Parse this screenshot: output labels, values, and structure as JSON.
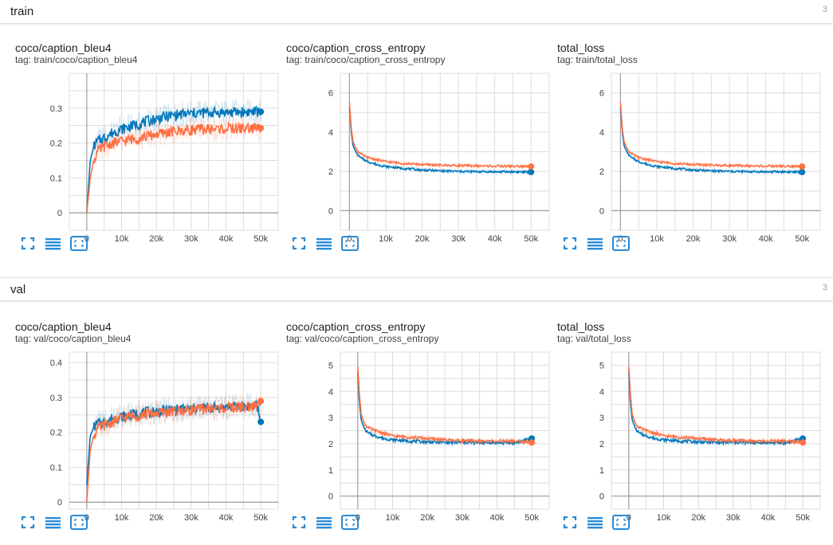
{
  "sections": [
    {
      "name": "train",
      "count": "3",
      "cards": [
        {
          "title": "coco/caption_bleu4",
          "tag": "tag: train/coco/caption_bleu4",
          "chart_data": {
            "type": "line",
            "x_ticks": [
              "0",
              "10k",
              "20k",
              "30k",
              "40k",
              "50k"
            ],
            "y_ticks": [
              "0",
              "0.1",
              "0.2",
              "0.3"
            ],
            "xlim": [
              -5000,
              55000
            ],
            "ylim": [
              -0.05,
              0.4
            ],
            "series": [
              {
                "color": "#0077bb",
                "x": [
                  0,
                  1000,
                  2000,
                  3000,
                  5000,
                  7500,
                  10000,
                  15000,
                  20000,
                  25000,
                  30000,
                  35000,
                  40000,
                  45000,
                  50000
                ],
                "y": [
                  0,
                  0.15,
                  0.19,
                  0.205,
                  0.215,
                  0.23,
                  0.24,
                  0.255,
                  0.27,
                  0.28,
                  0.285,
                  0.287,
                  0.288,
                  0.289,
                  0.29
                ]
              },
              {
                "color": "#ff7043",
                "x": [
                  0,
                  1000,
                  2000,
                  3000,
                  5000,
                  7500,
                  10000,
                  15000,
                  20000,
                  25000,
                  30000,
                  35000,
                  40000,
                  45000,
                  50000
                ],
                "y": [
                  0,
                  0.1,
                  0.15,
                  0.175,
                  0.19,
                  0.2,
                  0.205,
                  0.215,
                  0.225,
                  0.233,
                  0.238,
                  0.24,
                  0.241,
                  0.242,
                  0.243
                ]
              }
            ]
          }
        },
        {
          "title": "coco/caption_cross_entropy",
          "tag": "tag: train/coco/caption_cross_entropy",
          "chart_data": {
            "type": "line",
            "x_ticks": [
              "0",
              "10k",
              "20k",
              "30k",
              "40k",
              "50k"
            ],
            "y_ticks": [
              "0",
              "2",
              "4",
              "6"
            ],
            "xlim": [
              -2500,
              55000
            ],
            "ylim": [
              -1,
              7
            ],
            "series": [
              {
                "color": "#0077bb",
                "x": [
                  0,
                  500,
                  1000,
                  2000,
                  3000,
                  5000,
                  7500,
                  10000,
                  15000,
                  20000,
                  25000,
                  30000,
                  35000,
                  40000,
                  45000,
                  50000
                ],
                "y": [
                  5.3,
                  4.0,
                  3.3,
                  2.9,
                  2.7,
                  2.5,
                  2.35,
                  2.25,
                  2.15,
                  2.07,
                  2.03,
                  2.0,
                  1.99,
                  1.98,
                  1.98,
                  1.97
                ]
              },
              {
                "color": "#ff7043",
                "x": [
                  0,
                  500,
                  1000,
                  2000,
                  3000,
                  5000,
                  7500,
                  10000,
                  15000,
                  20000,
                  25000,
                  30000,
                  35000,
                  40000,
                  45000,
                  50000
                ],
                "y": [
                  5.5,
                  4.2,
                  3.5,
                  3.1,
                  2.9,
                  2.7,
                  2.6,
                  2.5,
                  2.4,
                  2.35,
                  2.32,
                  2.3,
                  2.28,
                  2.27,
                  2.26,
                  2.25
                ]
              }
            ]
          }
        },
        {
          "title": "total_loss",
          "tag": "tag: train/total_loss",
          "chart_data": {
            "type": "line",
            "x_ticks": [
              "0",
              "10k",
              "20k",
              "30k",
              "40k",
              "50k"
            ],
            "y_ticks": [
              "0",
              "2",
              "4",
              "6"
            ],
            "xlim": [
              -2500,
              55000
            ],
            "ylim": [
              -1,
              7
            ],
            "series": [
              {
                "color": "#0077bb",
                "x": [
                  0,
                  500,
                  1000,
                  2000,
                  3000,
                  5000,
                  7500,
                  10000,
                  15000,
                  20000,
                  25000,
                  30000,
                  35000,
                  40000,
                  45000,
                  50000
                ],
                "y": [
                  5.3,
                  4.0,
                  3.3,
                  2.9,
                  2.7,
                  2.5,
                  2.35,
                  2.25,
                  2.15,
                  2.07,
                  2.03,
                  2.0,
                  1.99,
                  1.98,
                  1.98,
                  1.97
                ]
              },
              {
                "color": "#ff7043",
                "x": [
                  0,
                  500,
                  1000,
                  2000,
                  3000,
                  5000,
                  7500,
                  10000,
                  15000,
                  20000,
                  25000,
                  30000,
                  35000,
                  40000,
                  45000,
                  50000
                ],
                "y": [
                  5.5,
                  4.2,
                  3.5,
                  3.1,
                  2.9,
                  2.7,
                  2.6,
                  2.5,
                  2.4,
                  2.35,
                  2.32,
                  2.3,
                  2.28,
                  2.27,
                  2.26,
                  2.25
                ]
              }
            ]
          }
        }
      ]
    },
    {
      "name": "val",
      "count": "3",
      "cards": [
        {
          "title": "coco/caption_bleu4",
          "tag": "tag: val/coco/caption_bleu4",
          "chart_data": {
            "type": "line",
            "x_ticks": [
              "0",
              "10k",
              "20k",
              "30k",
              "40k",
              "50k"
            ],
            "y_ticks": [
              "0",
              "0.1",
              "0.2",
              "0.3",
              "0.4"
            ],
            "xlim": [
              -5000,
              55000
            ],
            "ylim": [
              -0.02,
              0.43
            ],
            "series": [
              {
                "color": "#0077bb",
                "x": [
                  0,
                  1000,
                  2000,
                  3000,
                  5000,
                  7500,
                  10000,
                  15000,
                  20000,
                  25000,
                  30000,
                  35000,
                  40000,
                  45000,
                  49000,
                  50000
                ],
                "y": [
                  0.05,
                  0.19,
                  0.215,
                  0.225,
                  0.23,
                  0.24,
                  0.245,
                  0.255,
                  0.26,
                  0.265,
                  0.268,
                  0.27,
                  0.272,
                  0.275,
                  0.276,
                  0.23
                ]
              },
              {
                "color": "#ff7043",
                "x": [
                  0,
                  1000,
                  2000,
                  3000,
                  5000,
                  7500,
                  10000,
                  15000,
                  20000,
                  25000,
                  30000,
                  35000,
                  40000,
                  45000,
                  49000,
                  50000
                ],
                "y": [
                  0,
                  0.15,
                  0.19,
                  0.21,
                  0.22,
                  0.23,
                  0.24,
                  0.25,
                  0.255,
                  0.26,
                  0.265,
                  0.268,
                  0.27,
                  0.272,
                  0.275,
                  0.29
                ]
              }
            ]
          }
        },
        {
          "title": "coco/caption_cross_entropy",
          "tag": "tag: val/coco/caption_cross_entropy",
          "chart_data": {
            "type": "line",
            "x_ticks": [
              "0",
              "10k",
              "20k",
              "30k",
              "40k",
              "50k"
            ],
            "y_ticks": [
              "0",
              "1",
              "2",
              "3",
              "4",
              "5"
            ],
            "xlim": [
              -5000,
              55000
            ],
            "ylim": [
              -0.5,
              5.5
            ],
            "series": [
              {
                "color": "#0077bb",
                "x": [
                  0,
                  500,
                  1000,
                  2000,
                  3000,
                  5000,
                  7500,
                  10000,
                  15000,
                  20000,
                  25000,
                  30000,
                  35000,
                  40000,
                  45000,
                  50000
                ],
                "y": [
                  4.7,
                  3.5,
                  2.9,
                  2.55,
                  2.4,
                  2.3,
                  2.2,
                  2.15,
                  2.1,
                  2.07,
                  2.05,
                  2.05,
                  2.04,
                  2.04,
                  2.03,
                  2.2
                ]
              },
              {
                "color": "#ff7043",
                "x": [
                  0,
                  500,
                  1000,
                  2000,
                  3000,
                  5000,
                  7500,
                  10000,
                  15000,
                  20000,
                  25000,
                  30000,
                  35000,
                  40000,
                  45000,
                  50000
                ],
                "y": [
                  4.95,
                  3.8,
                  3.1,
                  2.75,
                  2.6,
                  2.5,
                  2.4,
                  2.3,
                  2.25,
                  2.2,
                  2.15,
                  2.12,
                  2.1,
                  2.1,
                  2.1,
                  2.05
                ]
              }
            ]
          }
        },
        {
          "title": "total_loss",
          "tag": "tag: val/total_loss",
          "chart_data": {
            "type": "line",
            "x_ticks": [
              "0",
              "10k",
              "20k",
              "30k",
              "40k",
              "50k"
            ],
            "y_ticks": [
              "0",
              "1",
              "2",
              "3",
              "4",
              "5"
            ],
            "xlim": [
              -5000,
              55000
            ],
            "ylim": [
              -0.5,
              5.5
            ],
            "series": [
              {
                "color": "#0077bb",
                "x": [
                  0,
                  500,
                  1000,
                  2000,
                  3000,
                  5000,
                  7500,
                  10000,
                  15000,
                  20000,
                  25000,
                  30000,
                  35000,
                  40000,
                  45000,
                  50000
                ],
                "y": [
                  4.7,
                  3.5,
                  2.9,
                  2.55,
                  2.4,
                  2.3,
                  2.2,
                  2.15,
                  2.1,
                  2.07,
                  2.05,
                  2.05,
                  2.04,
                  2.04,
                  2.03,
                  2.2
                ]
              },
              {
                "color": "#ff7043",
                "x": [
                  0,
                  500,
                  1000,
                  2000,
                  3000,
                  5000,
                  7500,
                  10000,
                  15000,
                  20000,
                  25000,
                  30000,
                  35000,
                  40000,
                  45000,
                  50000
                ],
                "y": [
                  4.95,
                  3.8,
                  3.1,
                  2.75,
                  2.6,
                  2.5,
                  2.4,
                  2.3,
                  2.25,
                  2.2,
                  2.15,
                  2.12,
                  2.1,
                  2.1,
                  2.1,
                  2.05
                ]
              }
            ]
          }
        }
      ]
    }
  ],
  "icons": {
    "fullscreen": "fullscreen-icon",
    "log_scale": "lines-icon",
    "fit_domain": "fit-domain-icon"
  },
  "accent_color": "#288ad6"
}
